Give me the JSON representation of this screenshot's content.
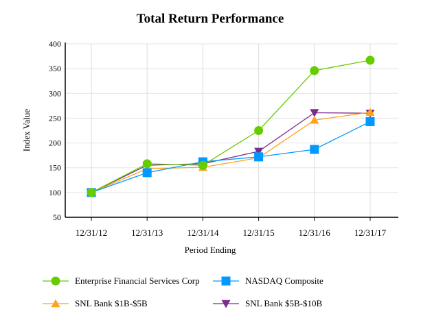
{
  "chart_data": {
    "type": "line",
    "title": "Total Return Performance",
    "xlabel": "Period Ending",
    "ylabel": "Index Value",
    "ylim": [
      50,
      400
    ],
    "yticks": [
      50,
      100,
      150,
      200,
      250,
      300,
      350,
      400
    ],
    "grid": true,
    "legend_position": "bottom",
    "categories": [
      "12/31/12",
      "12/31/13",
      "12/31/14",
      "12/31/15",
      "12/31/16",
      "12/31/17"
    ],
    "series": [
      {
        "name": "Enterprise Financial Services Corp",
        "color": "#66cc00",
        "marker": "circle",
        "values": [
          100,
          158,
          155,
          225,
          346,
          367
        ]
      },
      {
        "name": "NASDAQ Composite",
        "color": "#0099ff",
        "marker": "square",
        "values": [
          100,
          140,
          162,
          172,
          187,
          243
        ]
      },
      {
        "name": "SNL Bank $1B-$5B",
        "color": "#ffa31a",
        "marker": "triangle-up",
        "values": [
          100,
          148,
          151,
          170,
          246,
          262
        ]
      },
      {
        "name": "SNL Bank $5B-$10B",
        "color": "#7b2d8e",
        "marker": "triangle-down",
        "values": [
          100,
          155,
          158,
          183,
          261,
          260
        ]
      }
    ]
  }
}
